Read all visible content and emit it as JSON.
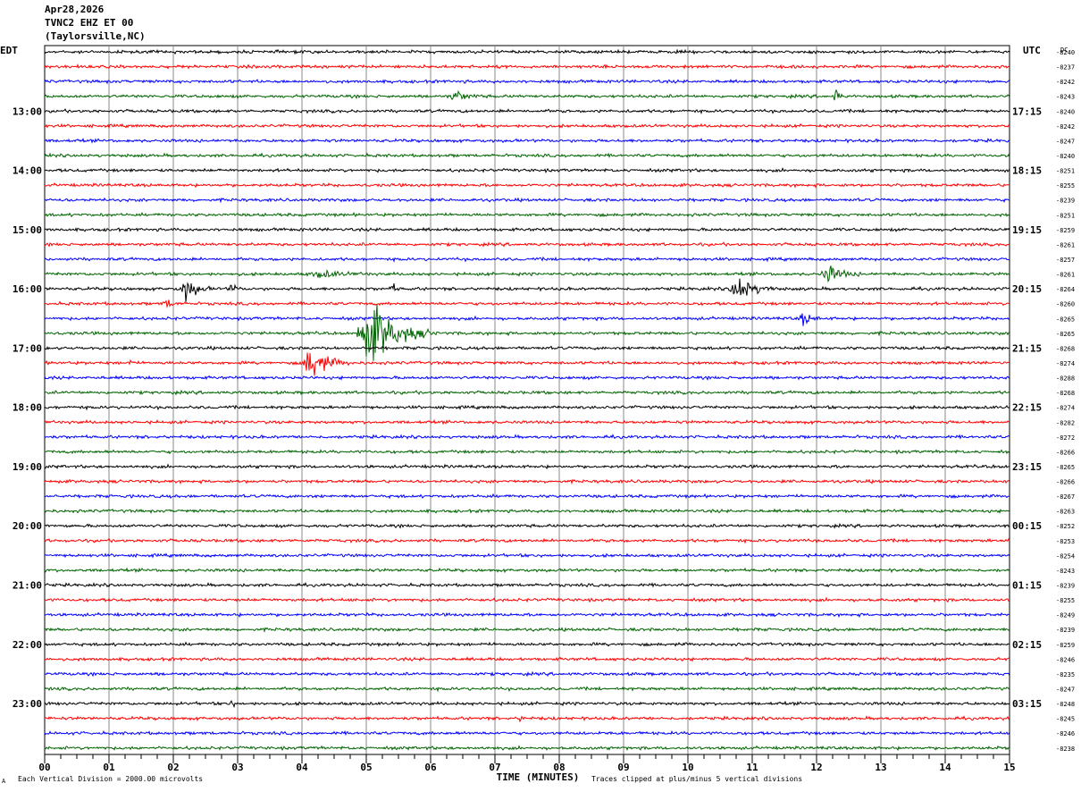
{
  "header": {
    "date": "Apr28,2026",
    "station": "TVNC2 EHZ ET 00",
    "location": "(Taylorsville,NC)"
  },
  "footer": {
    "scale_note": "Each Vertical Division = 2000.00 microvolts",
    "clip_note": "Traces clipped at plus/minus 5 vertical divisions",
    "corner_mark": "A"
  },
  "colors": {
    "cycle": [
      "#000000",
      "#ff0000",
      "#0000ff",
      "#006400"
    ],
    "grid": "#888888"
  },
  "chart_data": {
    "type": "line",
    "subtype": "seismic helicorder (drum plot)",
    "title": "",
    "xlabel": "TIME (MINUTES)",
    "left_axis_label": "EDT",
    "right_axis_label": "UTC",
    "dc_label": "DC",
    "xlim": [
      0,
      15
    ],
    "x_ticks": [
      "00",
      "01",
      "02",
      "03",
      "04",
      "05",
      "06",
      "07",
      "08",
      "09",
      "10",
      "11",
      "12",
      "13",
      "14",
      "15"
    ],
    "grid": true,
    "left_hour_labels": [
      "13:00",
      "14:00",
      "15:00",
      "16:00",
      "17:00",
      "18:00",
      "19:00",
      "20:00",
      "21:00",
      "22:00",
      "23:00"
    ],
    "right_hour_labels": [
      "17:15",
      "18:15",
      "19:15",
      "20:15",
      "21:15",
      "22:15",
      "23:15",
      "00:15",
      "01:15",
      "02:15",
      "03:15"
    ],
    "dc_offsets": [
      "-8240",
      "-8237",
      "-8242",
      "-8243",
      "-8240",
      "-8242",
      "-8247",
      "-8240",
      "-8251",
      "-8255",
      "-8239",
      "-8251",
      "-8259",
      "-8261",
      "-8257",
      "-8261",
      "-8264",
      "-8260",
      "-8265",
      "-8265",
      "-8268",
      "-8274",
      "-8288",
      "-8268",
      "-8274",
      "-8282",
      "-8272",
      "-8266",
      "-8265",
      "-8266",
      "-8267",
      "-8263",
      "-8252",
      "-8253",
      "-8254",
      "-8243",
      "-8239",
      "-8255",
      "-8249",
      "-8239",
      "-8259",
      "-8246",
      "-8235",
      "-8247",
      "-8248",
      "-8245",
      "-8246",
      "-8238"
    ],
    "events": [
      {
        "trace": 3,
        "minute": 6.4,
        "amp": 0.25,
        "dur": 0.4
      },
      {
        "trace": 3,
        "minute": 12.3,
        "amp": 0.5,
        "dur": 0.12
      },
      {
        "trace": 15,
        "minute": 4.3,
        "amp": 0.15,
        "dur": 0.8
      },
      {
        "trace": 15,
        "minute": 12.2,
        "amp": 0.4,
        "dur": 0.5
      },
      {
        "trace": 16,
        "minute": 2.2,
        "amp": 0.55,
        "dur": 0.4
      },
      {
        "trace": 16,
        "minute": 2.9,
        "amp": 0.3,
        "dur": 0.15
      },
      {
        "trace": 16,
        "minute": 5.4,
        "amp": 0.25,
        "dur": 0.15
      },
      {
        "trace": 16,
        "minute": 10.8,
        "amp": 0.6,
        "dur": 0.6
      },
      {
        "trace": 17,
        "minute": 1.9,
        "amp": 0.2,
        "dur": 0.25
      },
      {
        "trace": 18,
        "minute": 11.8,
        "amp": 0.3,
        "dur": 0.3
      },
      {
        "trace": 19,
        "minute": 5.1,
        "amp": 1.4,
        "dur": 1.0
      },
      {
        "trace": 21,
        "minute": 4.15,
        "amp": 0.8,
        "dur": 0.6
      },
      {
        "trace": 21,
        "minute": 1.3,
        "amp": 0.2,
        "dur": 0.1
      },
      {
        "trace": 44,
        "minute": 2.9,
        "amp": 0.3,
        "dur": 0.08
      },
      {
        "trace": 45,
        "minute": 7.4,
        "amp": 0.15,
        "dur": 0.1
      }
    ]
  }
}
